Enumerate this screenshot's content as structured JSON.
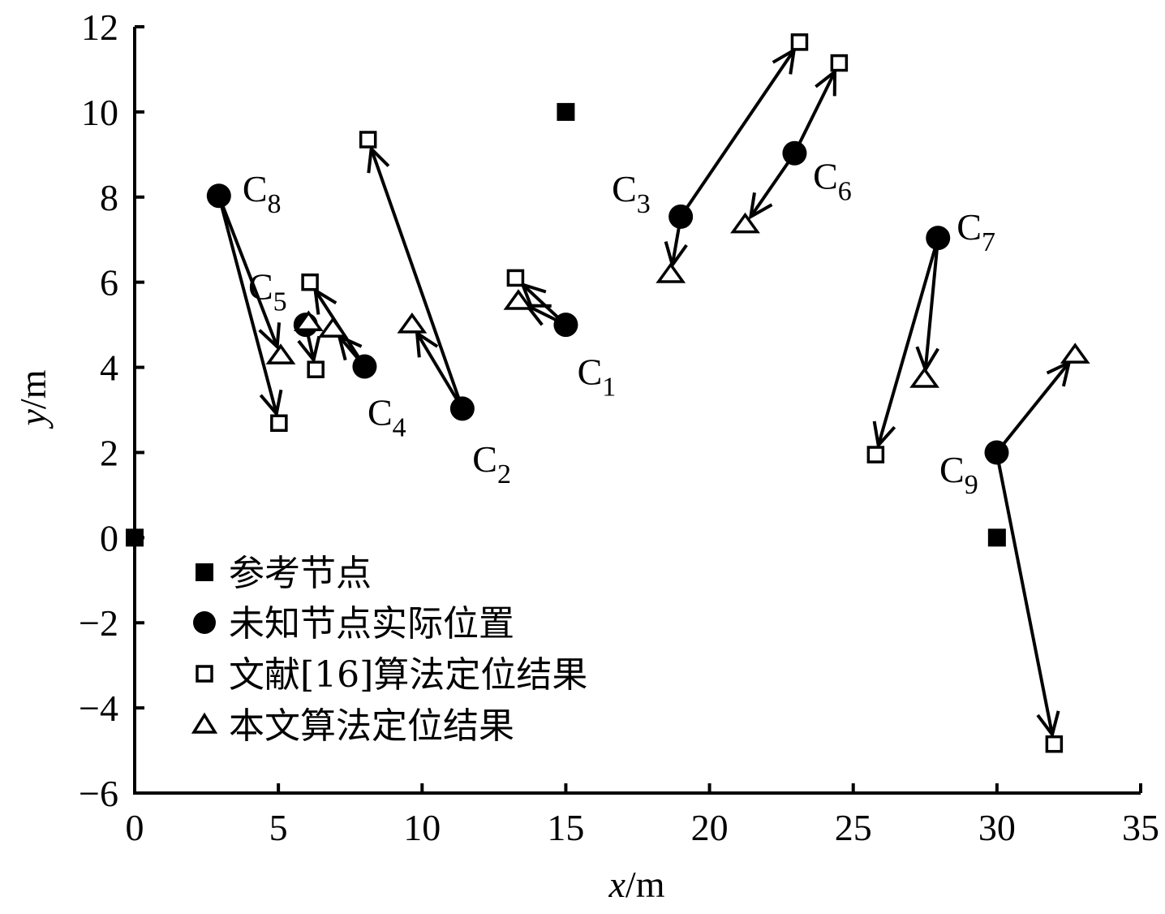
{
  "chart_data": {
    "type": "scatter",
    "title": "",
    "xlabel": "x/m",
    "ylabel": "y/m",
    "xlim": [
      0,
      35
    ],
    "ylim": [
      -6,
      12
    ],
    "xticks": [
      0,
      5,
      10,
      15,
      20,
      25,
      30,
      35
    ],
    "yticks": [
      -6,
      -4,
      -2,
      0,
      2,
      4,
      6,
      8,
      10,
      12
    ],
    "ytick_labels": [
      "−6",
      "−4",
      "−2",
      "0",
      "2",
      "4",
      "6",
      "8",
      "10",
      "12"
    ],
    "grid": false,
    "legend_position": "lower-left inside",
    "legend": [
      {
        "marker": "filled-square",
        "label": "参考节点"
      },
      {
        "marker": "filled-circle",
        "label": "未知节点实际位置"
      },
      {
        "marker": "open-square",
        "label": "文献[16]算法定位结果"
      },
      {
        "marker": "open-triangle",
        "label": "本文算法定位结果"
      }
    ],
    "reference_nodes": [
      {
        "x": 0,
        "y": 0
      },
      {
        "x": 15,
        "y": 10
      },
      {
        "x": 30,
        "y": 0
      }
    ],
    "unknown_nodes": [
      {
        "name": "C",
        "sub": "1",
        "actual": [
          15.0,
          5.0
        ],
        "ref16": [
          13.25,
          6.1
        ],
        "proposed": [
          13.35,
          5.55
        ],
        "label_pos": [
          15.4,
          3.6
        ]
      },
      {
        "name": "C",
        "sub": "2",
        "actual": [
          11.4,
          3.03
        ],
        "ref16": [
          8.12,
          9.35
        ],
        "proposed": [
          9.65,
          5.0
        ],
        "label_pos": [
          11.75,
          1.55
        ]
      },
      {
        "name": "C",
        "sub": "3",
        "actual": [
          19.0,
          7.54
        ],
        "ref16": [
          23.13,
          11.64
        ],
        "proposed": [
          18.65,
          6.18
        ],
        "label_pos": [
          16.6,
          7.9
        ]
      },
      {
        "name": "C",
        "sub": "4",
        "actual": [
          8.0,
          4.02
        ],
        "ref16": [
          6.1,
          6.0
        ],
        "proposed": [
          6.9,
          4.9
        ],
        "label_pos": [
          8.1,
          2.65
        ]
      },
      {
        "name": "C",
        "sub": "5",
        "actual": [
          5.95,
          5.0
        ],
        "ref16": [
          6.3,
          3.95
        ],
        "proposed": [
          6.05,
          5.05
        ],
        "label_pos": [
          3.95,
          5.6
        ]
      },
      {
        "name": "C",
        "sub": "6",
        "actual": [
          22.96,
          9.03
        ],
        "ref16": [
          24.51,
          11.15
        ],
        "proposed": [
          21.24,
          7.35
        ],
        "label_pos": [
          23.6,
          8.2
        ]
      },
      {
        "name": "C",
        "sub": "7",
        "actual": [
          27.95,
          7.04
        ],
        "ref16": [
          25.78,
          1.95
        ],
        "proposed": [
          27.48,
          3.72
        ],
        "label_pos": [
          28.6,
          7.0
        ]
      },
      {
        "name": "C",
        "sub": "8",
        "actual": [
          2.93,
          8.03
        ],
        "ref16": [
          5.02,
          2.69
        ],
        "proposed": [
          5.08,
          4.27
        ],
        "label_pos": [
          3.75,
          7.9
        ]
      },
      {
        "name": "C",
        "sub": "9",
        "actual": [
          29.99,
          2.0
        ],
        "ref16": [
          31.99,
          -4.85
        ],
        "proposed": [
          32.72,
          4.29
        ],
        "label_pos": [
          28.0,
          1.3
        ]
      }
    ]
  },
  "labels": {
    "xlabel_italic": "x",
    "xlabel_unit": "/m",
    "ylabel_italic": "y",
    "ylabel_unit": "/m"
  },
  "colors": {
    "ink": "#000000",
    "background": "#ffffff"
  }
}
